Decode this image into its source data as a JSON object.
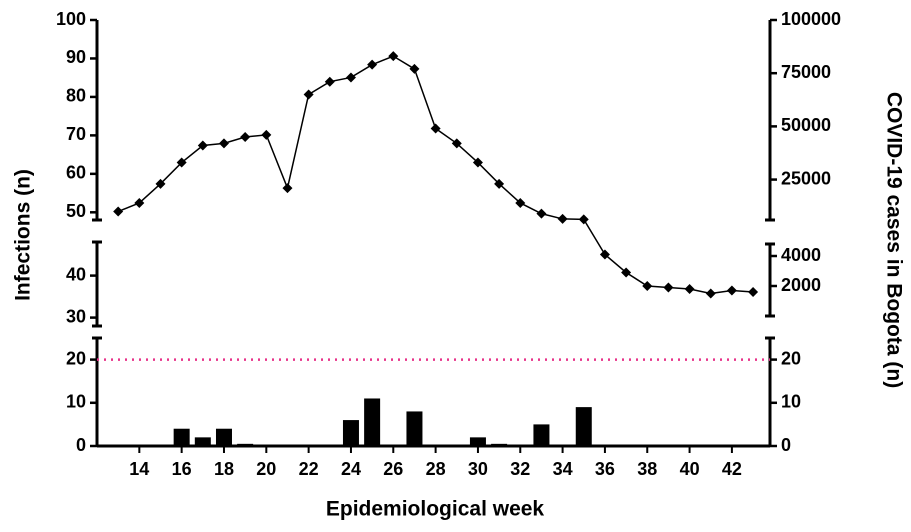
{
  "chart_data": {
    "type": "bar_line",
    "x_label": "Epidemiological week",
    "y_label": "Infections (n)",
    "y2_label": "COVID-19 cases in Bogota (n)",
    "x": [
      13,
      14,
      15,
      16,
      17,
      18,
      19,
      20,
      21,
      22,
      23,
      24,
      25,
      26,
      27,
      28,
      29,
      30,
      31,
      32,
      33,
      34,
      35,
      36,
      37,
      38,
      39,
      40,
      41,
      42,
      43
    ],
    "xlim": [
      12,
      43.8
    ],
    "xticks": [
      14,
      16,
      18,
      20,
      22,
      24,
      26,
      28,
      30,
      32,
      34,
      36,
      38,
      40,
      42
    ],
    "y_segments": [
      {
        "ylim": [
          0,
          25
        ],
        "yticks": [
          0,
          10,
          20
        ]
      },
      {
        "ylim": [
          28,
          48
        ],
        "yticks": [
          30,
          40
        ]
      },
      {
        "ylim": [
          48,
          100
        ],
        "yticks": [
          50,
          60,
          70,
          80,
          90,
          100
        ]
      }
    ],
    "y2_segments": [
      {
        "ylim": [
          0,
          25
        ],
        "yticks": [
          0,
          10,
          20
        ]
      },
      {
        "ylim": [
          0,
          4800
        ],
        "yticks": [
          2000,
          4000
        ]
      },
      {
        "ylim": [
          6000,
          100000
        ],
        "yticks": [
          25000,
          50000,
          75000,
          100000
        ]
      }
    ],
    "reference_line": {
      "value": 20,
      "color": "#e8338a"
    },
    "grid": false,
    "series": [
      {
        "type": "bar",
        "color": "#000000",
        "values": [
          0,
          0,
          0,
          4,
          2,
          4,
          0.5,
          0,
          0,
          0,
          0,
          6,
          11,
          0,
          8,
          0,
          0,
          2,
          0.5,
          0,
          5,
          0,
          9,
          0,
          0,
          0,
          0,
          0,
          0,
          0,
          0
        ]
      },
      {
        "type": "line",
        "axis": "y2",
        "color": "#000000",
        "values": [
          10000,
          14000,
          23000,
          33000,
          41000,
          42000,
          45000,
          46000,
          21000,
          65000,
          71000,
          73000,
          79000,
          83000,
          77000,
          49000,
          42000,
          33000,
          23000,
          14000,
          9000,
          6500,
          6300,
          4100,
          2900,
          2000,
          1900,
          1800,
          1500,
          1700,
          1600
        ]
      }
    ]
  }
}
